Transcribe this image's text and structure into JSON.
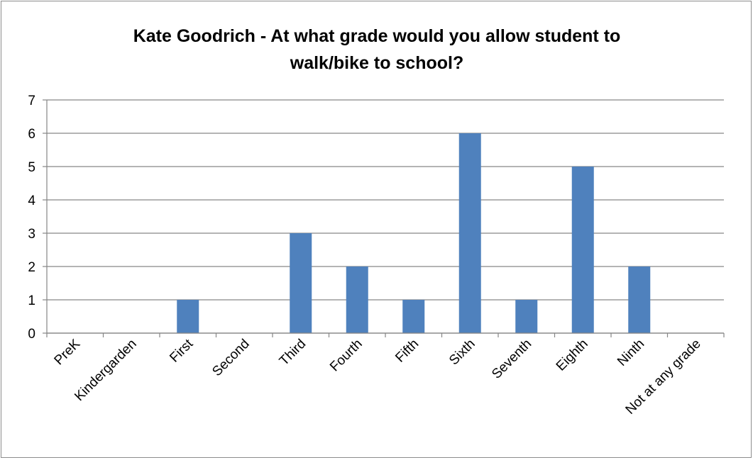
{
  "chart_data": {
    "type": "bar",
    "title_lines": [
      "Kate Goodrich - At what grade would you allow student to",
      "walk/bike to school?"
    ],
    "categories": [
      "PreK",
      "Kindergarden",
      "First",
      "Second",
      "Third",
      "Fourth",
      "Fifth",
      "Sixth",
      "Seventh",
      "Eighth",
      "Ninth",
      "Not at any grade"
    ],
    "values": [
      0,
      0,
      1,
      0,
      3,
      2,
      1,
      6,
      1,
      5,
      2,
      0
    ],
    "xlabel": "",
    "ylabel": "",
    "ylim": [
      0,
      7
    ],
    "yticks": [
      "0",
      "1",
      "2",
      "3",
      "4",
      "5",
      "6",
      "7"
    ],
    "grid": "horizontal",
    "legend": "none",
    "bar_color": "#4f81bd",
    "grid_color": "#868686"
  }
}
